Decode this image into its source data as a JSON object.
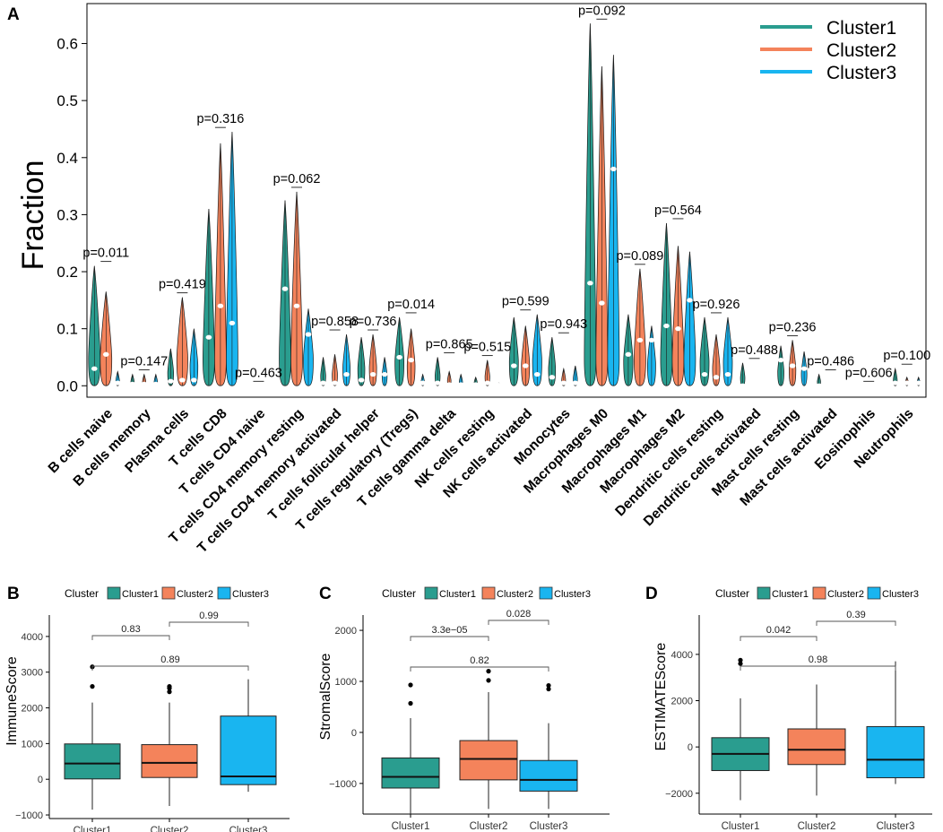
{
  "panel_labels": {
    "a": "A",
    "b": "B",
    "c": "C",
    "d": "D"
  },
  "chart_data": [
    {
      "type": "violin",
      "panel": "A",
      "ylabel": "Fraction",
      "xlabel": "",
      "ylim": [
        -0.02,
        0.67
      ],
      "yticks": [
        0.0,
        0.1,
        0.2,
        0.3,
        0.4,
        0.5,
        0.6
      ],
      "ytick_labels": [
        "0.0",
        "0.1",
        "0.2",
        "0.3",
        "0.4",
        "0.5",
        "0.6"
      ],
      "legend": {
        "position": "top-right",
        "entries": [
          "Cluster1",
          "Cluster2",
          "Cluster3"
        ]
      },
      "series_colors": [
        "#2a9d8f",
        "#f4835b",
        "#19b5f0"
      ],
      "categories": [
        "B cells naive",
        "B cells memory",
        "Plasma cells",
        "T cells CD8",
        "T cells CD4 naive",
        "T cells CD4 memory resting",
        "T cells CD4 memory activated",
        "T cells follicular helper",
        "T cells regulatory (Tregs)",
        "T cells gamma delta",
        "NK cells resting",
        "NK cells activated",
        "Monocytes",
        "Macrophages M0",
        "Macrophages M1",
        "Macrophages M2",
        "Dendritic cells resting",
        "Dendritic cells activated",
        "Mast cells resting",
        "Mast cells activated",
        "Eosinophils",
        "Neutrophils"
      ],
      "pvalues": [
        "p=0.011",
        "p=0.147",
        "p=0.419",
        "p=0.316",
        "p=0.463",
        "p=0.062",
        "p=0.858",
        "p=0.736",
        "p=0.014",
        "p=0.865",
        "p=0.515",
        "p=0.599",
        "p=0.943",
        "p=0.092",
        "p=0.089",
        "p=0.564",
        "p=0.926",
        "p=0.488",
        "p=0.236",
        "p=0.486",
        "p=0.606",
        "p=0.100"
      ],
      "max": [
        [
          0.21,
          0.165,
          0.025
        ],
        [
          0.02,
          0.02,
          0.02
        ],
        [
          0.065,
          0.155,
          0.1
        ],
        [
          0.31,
          0.425,
          0.445
        ],
        [
          0.0,
          0.0,
          0.0
        ],
        [
          0.325,
          0.34,
          0.135
        ],
        [
          0.05,
          0.055,
          0.09
        ],
        [
          0.085,
          0.09,
          0.05
        ],
        [
          0.12,
          0.1,
          0.02
        ],
        [
          0.05,
          0.025,
          0.02
        ],
        [
          0.015,
          0.045,
          0.005
        ],
        [
          0.12,
          0.105,
          0.125
        ],
        [
          0.085,
          0.03,
          0.035
        ],
        [
          0.635,
          0.56,
          0.58
        ],
        [
          0.125,
          0.205,
          0.105
        ],
        [
          0.285,
          0.245,
          0.235
        ],
        [
          0.12,
          0.09,
          0.12
        ],
        [
          0.04,
          0.0,
          0.0
        ],
        [
          0.07,
          0.08,
          0.06
        ],
        [
          0.02,
          0.0,
          0.0
        ],
        [
          0.0,
          0.0,
          0.0
        ],
        [
          0.03,
          0.015,
          0.015
        ]
      ],
      "median": [
        [
          0.03,
          0.055,
          0.005
        ],
        [
          0.003,
          0.003,
          0.003
        ],
        [
          0.008,
          0.01,
          0.01
        ],
        [
          0.085,
          0.14,
          0.11
        ],
        [
          0.0,
          0.0,
          0.0
        ],
        [
          0.17,
          0.14,
          0.09
        ],
        [
          0.005,
          0.005,
          0.02
        ],
        [
          0.01,
          0.02,
          0.02
        ],
        [
          0.05,
          0.045,
          0.005
        ],
        [
          0.005,
          0.002,
          0.002
        ],
        [
          0.002,
          0.005,
          0.001
        ],
        [
          0.035,
          0.035,
          0.02
        ],
        [
          0.015,
          0.005,
          0.005
        ],
        [
          0.18,
          0.145,
          0.38
        ],
        [
          0.055,
          0.08,
          0.08
        ],
        [
          0.105,
          0.1,
          0.15
        ],
        [
          0.02,
          0.015,
          0.02
        ],
        [
          0.0,
          0.0,
          0.0
        ],
        [
          0.045,
          0.035,
          0.03
        ],
        [
          0.0,
          0.0,
          0.0
        ],
        [
          0.0,
          0.0,
          0.0
        ],
        [
          0.005,
          0.005,
          0.005
        ]
      ]
    },
    {
      "type": "box",
      "panel": "B",
      "ylabel": "ImmuneScore",
      "legend_title": "Cluster",
      "legend": [
        "Cluster1",
        "Cluster2",
        "Cluster3"
      ],
      "categories": [
        "Cluster1",
        "Cluster2",
        "Cluster3"
      ],
      "ylim": [
        -1100,
        4600
      ],
      "yticks": [
        -1000,
        0,
        1000,
        2000,
        3000,
        4000
      ],
      "ytick_labels": [
        "−1000",
        "0",
        "1000",
        "2000",
        "3000",
        "4000"
      ],
      "boxes": [
        {
          "whisker_low": -850,
          "q1": 10,
          "median": 440,
          "q3": 990,
          "whisker_high": 2150,
          "outliers": [
            2600,
            3150
          ]
        },
        {
          "whisker_low": -750,
          "q1": 50,
          "median": 460,
          "q3": 970,
          "whisker_high": 2150,
          "outliers": [
            2450,
            2550,
            2600
          ]
        },
        {
          "whisker_low": -350,
          "q1": -150,
          "median": 80,
          "q3": 1770,
          "whisker_high": 2800,
          "outliers": []
        }
      ],
      "comparisons": [
        {
          "pair": [
            1,
            2
          ],
          "label": "0.83"
        },
        {
          "pair": [
            1,
            3
          ],
          "label": "0.89"
        },
        {
          "pair": [
            2,
            3
          ],
          "label": "0.99"
        }
      ]
    },
    {
      "type": "box",
      "panel": "C",
      "ylabel": "StromalScore",
      "legend_title": "Cluster",
      "legend": [
        "Cluster1",
        "Cluster2",
        "Cluster3"
      ],
      "categories": [
        "Cluster1",
        "Cluster2",
        "Cluster3"
      ],
      "ylim": [
        -1600,
        2300
      ],
      "yticks": [
        -1000,
        0,
        1000,
        2000
      ],
      "ytick_labels": [
        "−1000",
        "0",
        "1000",
        "2000"
      ],
      "boxes": [
        {
          "whisker_low": -1600,
          "q1": -1090,
          "median": -870,
          "q3": -500,
          "whisker_high": 280,
          "outliers": [
            570,
            930
          ]
        },
        {
          "whisker_low": -1500,
          "q1": -930,
          "median": -520,
          "q3": -160,
          "whisker_high": 790,
          "outliers": [
            1020,
            1200
          ]
        },
        {
          "whisker_low": -1500,
          "q1": -1150,
          "median": -930,
          "q3": -550,
          "whisker_high": 180,
          "outliers": [
            850,
            920
          ]
        }
      ],
      "comparisons": [
        {
          "pair": [
            1,
            2
          ],
          "label": "3.3e−05"
        },
        {
          "pair": [
            1,
            3
          ],
          "label": "0.82"
        },
        {
          "pair": [
            2,
            3
          ],
          "label": "0.028"
        }
      ]
    },
    {
      "type": "box",
      "panel": "D",
      "ylabel": "ESTIMATEScore",
      "legend_title": "Cluster",
      "legend": [
        "Cluster1",
        "Cluster2",
        "Cluster3"
      ],
      "categories": [
        "Cluster1",
        "Cluster2",
        "Cluster3"
      ],
      "ylim": [
        -2900,
        5700
      ],
      "yticks": [
        -2000,
        0,
        2000,
        4000
      ],
      "ytick_labels": [
        "−2000",
        "0",
        "2000",
        "4000"
      ],
      "boxes": [
        {
          "whisker_low": -2300,
          "q1": -1020,
          "median": -300,
          "q3": 400,
          "whisker_high": 2100,
          "outliers": [
            3600,
            3750
          ]
        },
        {
          "whisker_low": -2100,
          "q1": -760,
          "median": -120,
          "q3": 780,
          "whisker_high": 2700,
          "outliers": []
        },
        {
          "whisker_low": -1600,
          "q1": -1330,
          "median": -550,
          "q3": 880,
          "whisker_high": 3700,
          "outliers": []
        }
      ],
      "comparisons": [
        {
          "pair": [
            1,
            2
          ],
          "label": "0.042"
        },
        {
          "pair": [
            1,
            3
          ],
          "label": "0.98"
        },
        {
          "pair": [
            2,
            3
          ],
          "label": "0.39"
        }
      ]
    }
  ]
}
